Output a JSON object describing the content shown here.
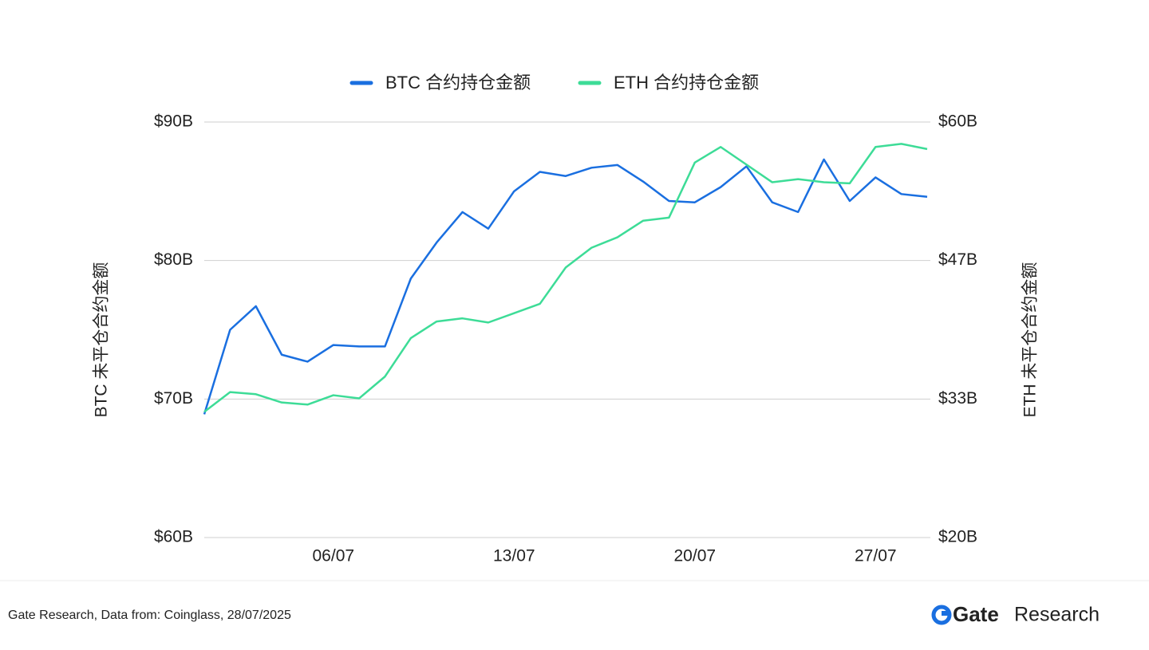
{
  "chart_data": {
    "type": "line",
    "categories": [
      null,
      null,
      null,
      null,
      null,
      "06/07",
      null,
      null,
      null,
      null,
      null,
      null,
      "13/07",
      null,
      null,
      null,
      null,
      null,
      null,
      "20/07",
      null,
      null,
      null,
      null,
      null,
      null,
      "27/07",
      null,
      null
    ],
    "series": [
      {
        "name": "BTC 合约持仓金额",
        "color": "#1a6fe0",
        "axis": "y",
        "values": [
          68.9,
          75.0,
          76.7,
          73.2,
          72.7,
          73.9,
          73.8,
          73.8,
          78.7,
          81.3,
          83.5,
          82.3,
          85.0,
          86.4,
          86.1,
          86.7,
          86.9,
          85.7,
          84.3,
          84.2,
          85.3,
          86.8,
          84.2,
          83.5,
          87.3,
          84.3,
          86.0,
          84.8,
          84.6
        ]
      },
      {
        "name": "ETH 合约持仓金额",
        "color": "#3ddc97",
        "axis": "y2",
        "values": [
          32.1,
          34.0,
          33.8,
          33.0,
          32.8,
          33.7,
          33.4,
          35.5,
          39.2,
          40.8,
          41.1,
          40.7,
          41.6,
          42.5,
          46.0,
          47.9,
          48.9,
          50.5,
          50.8,
          56.1,
          57.6,
          55.9,
          54.2,
          54.5,
          54.2,
          54.1,
          57.6,
          57.9,
          57.4
        ]
      }
    ],
    "ylabel": "BTC 未平仓合约金额",
    "y2label": "ETH 未平仓合约金额",
    "ylim": [
      60,
      90
    ],
    "yticks": [
      {
        "value": 60,
        "label": "$60B"
      },
      {
        "value": 70,
        "label": "$70B"
      },
      {
        "value": 80,
        "label": "$80B"
      },
      {
        "value": 90,
        "label": "$90B"
      }
    ],
    "y2lim": [
      20,
      60
    ],
    "y2ticks": [
      {
        "value": 20,
        "label": "$20B"
      },
      {
        "value": 33.33,
        "label": "$33B"
      },
      {
        "value": 46.67,
        "label": "$47B"
      },
      {
        "value": 60,
        "label": "$60B"
      }
    ],
    "grid": true,
    "legend": "top"
  },
  "footer": {
    "source": "Gate Research, Data from: Coinglass, 28/07/2025",
    "brand": "Gate",
    "brand_sub": "Research"
  }
}
